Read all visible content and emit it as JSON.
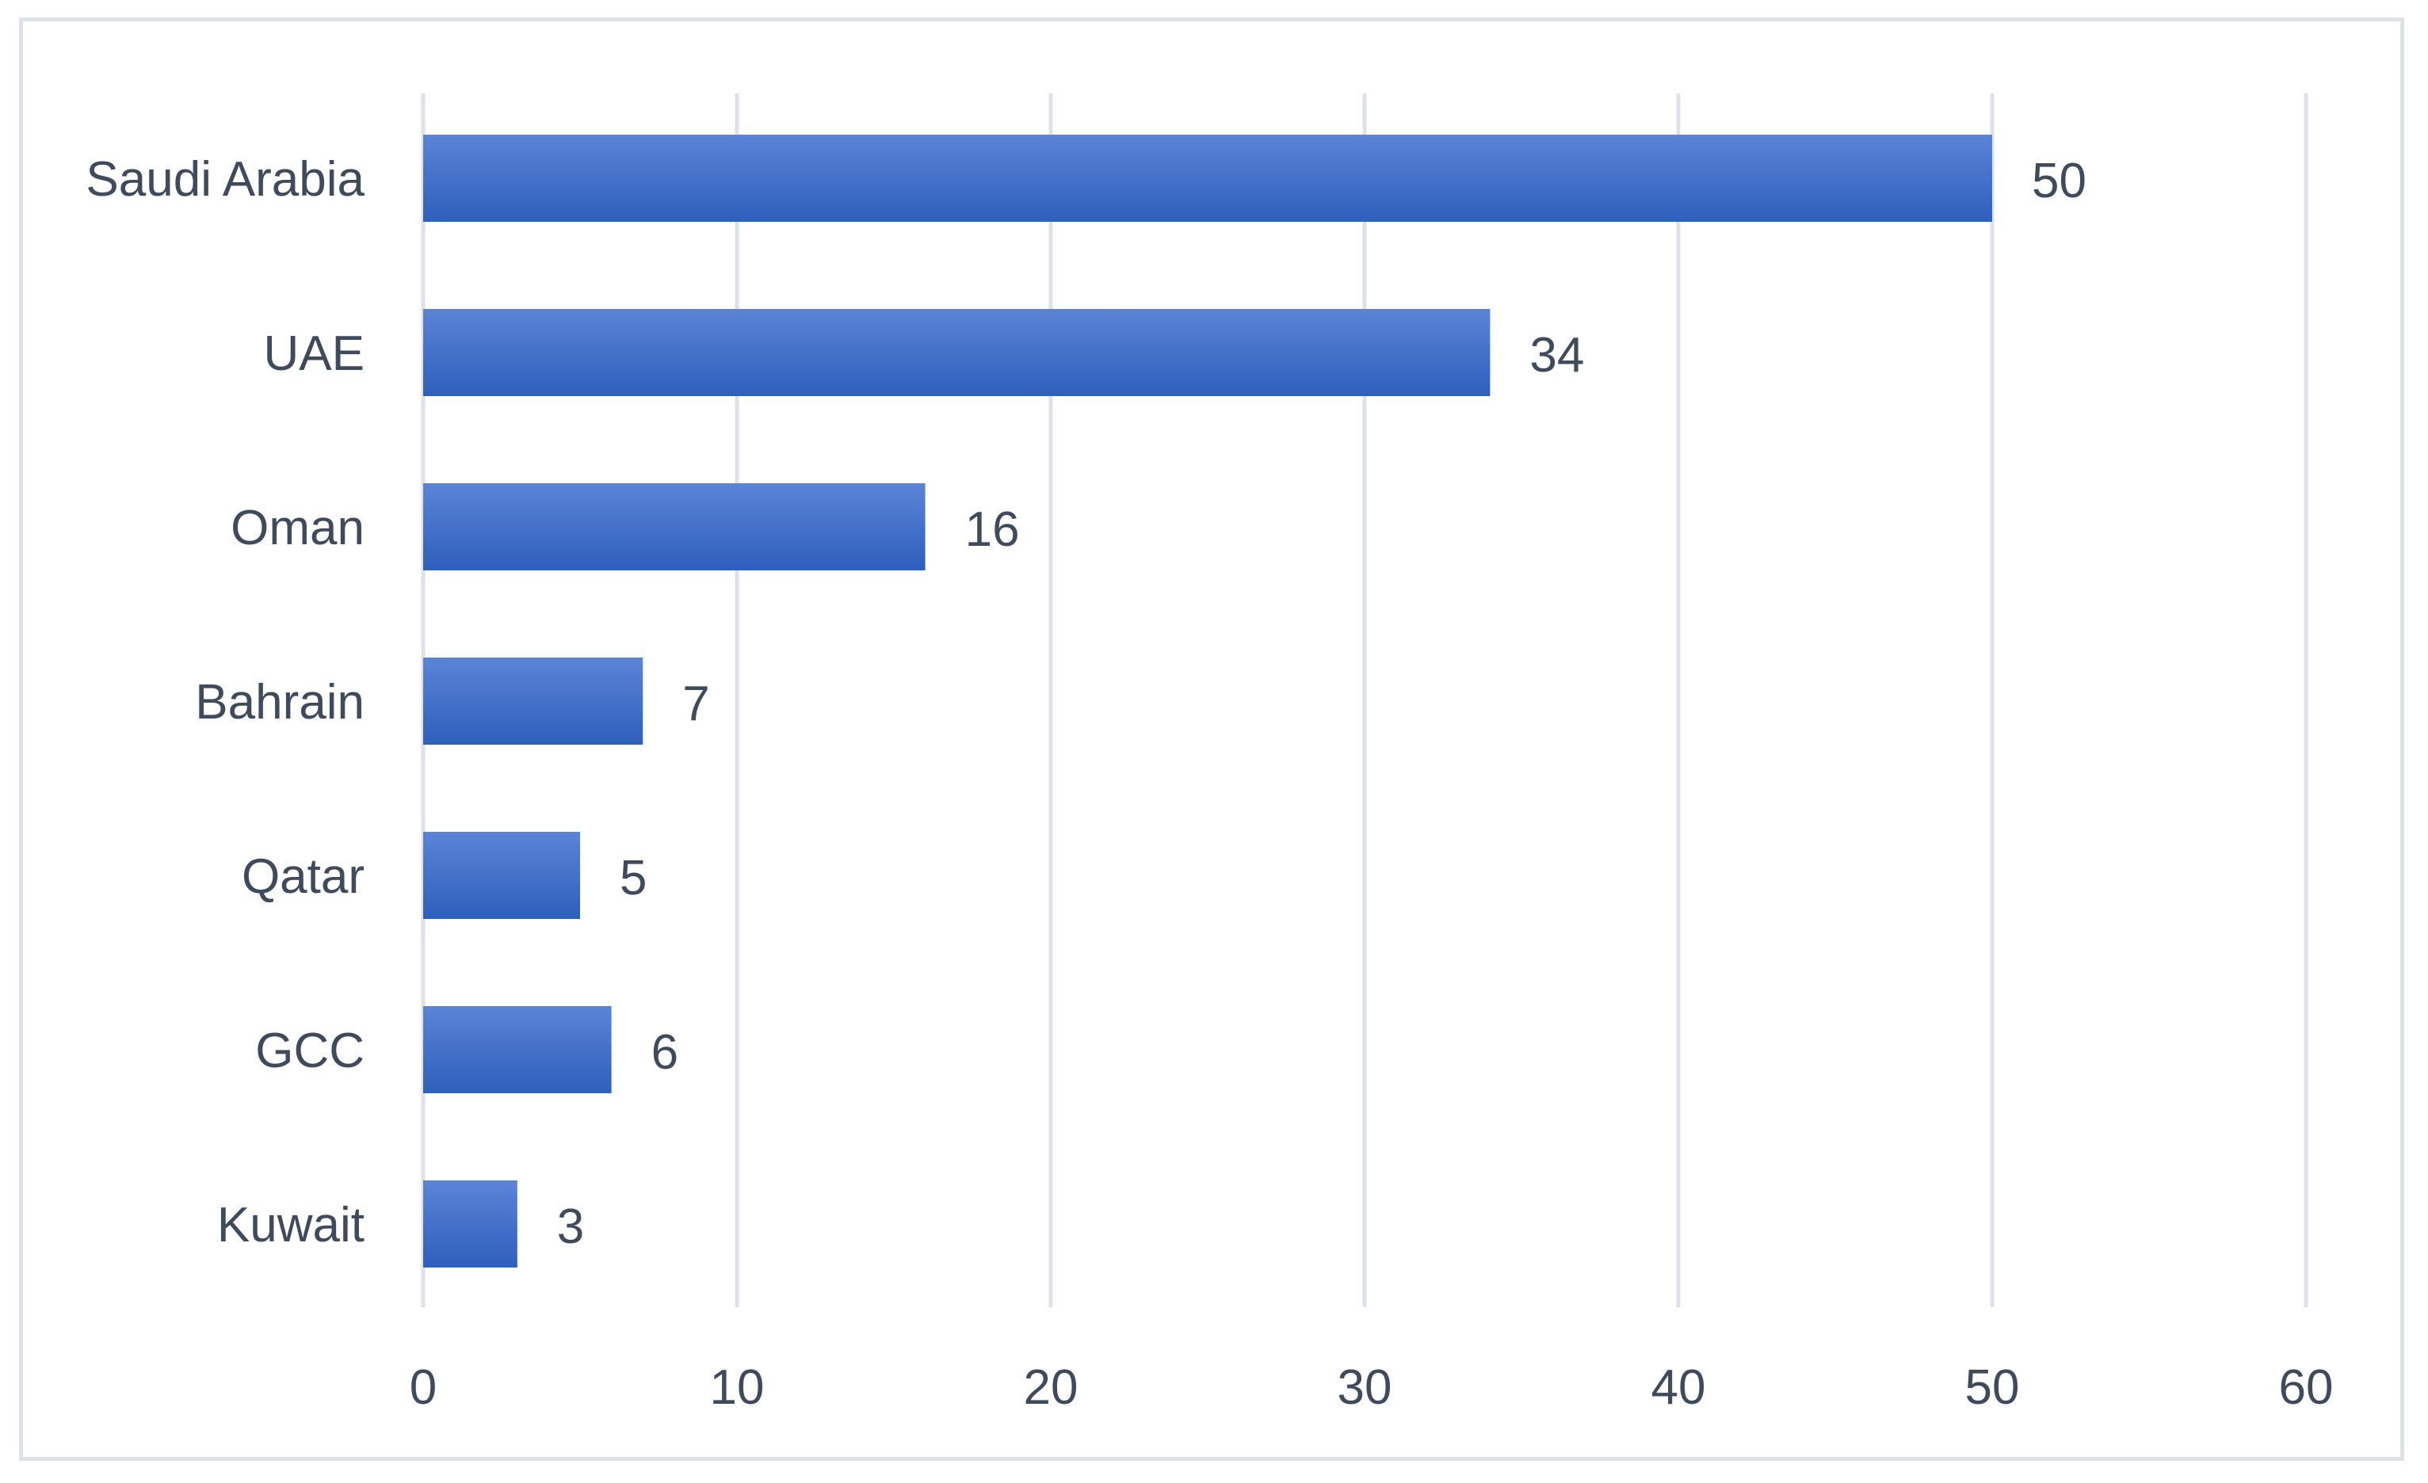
{
  "chart_data": {
    "type": "bar",
    "orientation": "horizontal",
    "title": "",
    "xlabel": "",
    "ylabel": "",
    "categories": [
      "Saudi Arabia",
      "UAE",
      "Oman",
      "Bahrain",
      "Qatar",
      "GCC",
      "Kuwait"
    ],
    "values": [
      50,
      34,
      16,
      7,
      5,
      6,
      3
    ],
    "xlim": [
      0,
      60
    ],
    "xticks": [
      0,
      10,
      20,
      30,
      40,
      50,
      60
    ],
    "grid": "vertical",
    "legend": "none",
    "data_labels": true,
    "colors": {
      "bar_top": "#5b84d6",
      "bar_bottom": "#2e5fbc",
      "grid": "#dde2e8",
      "text": "#3f4a5c"
    }
  }
}
